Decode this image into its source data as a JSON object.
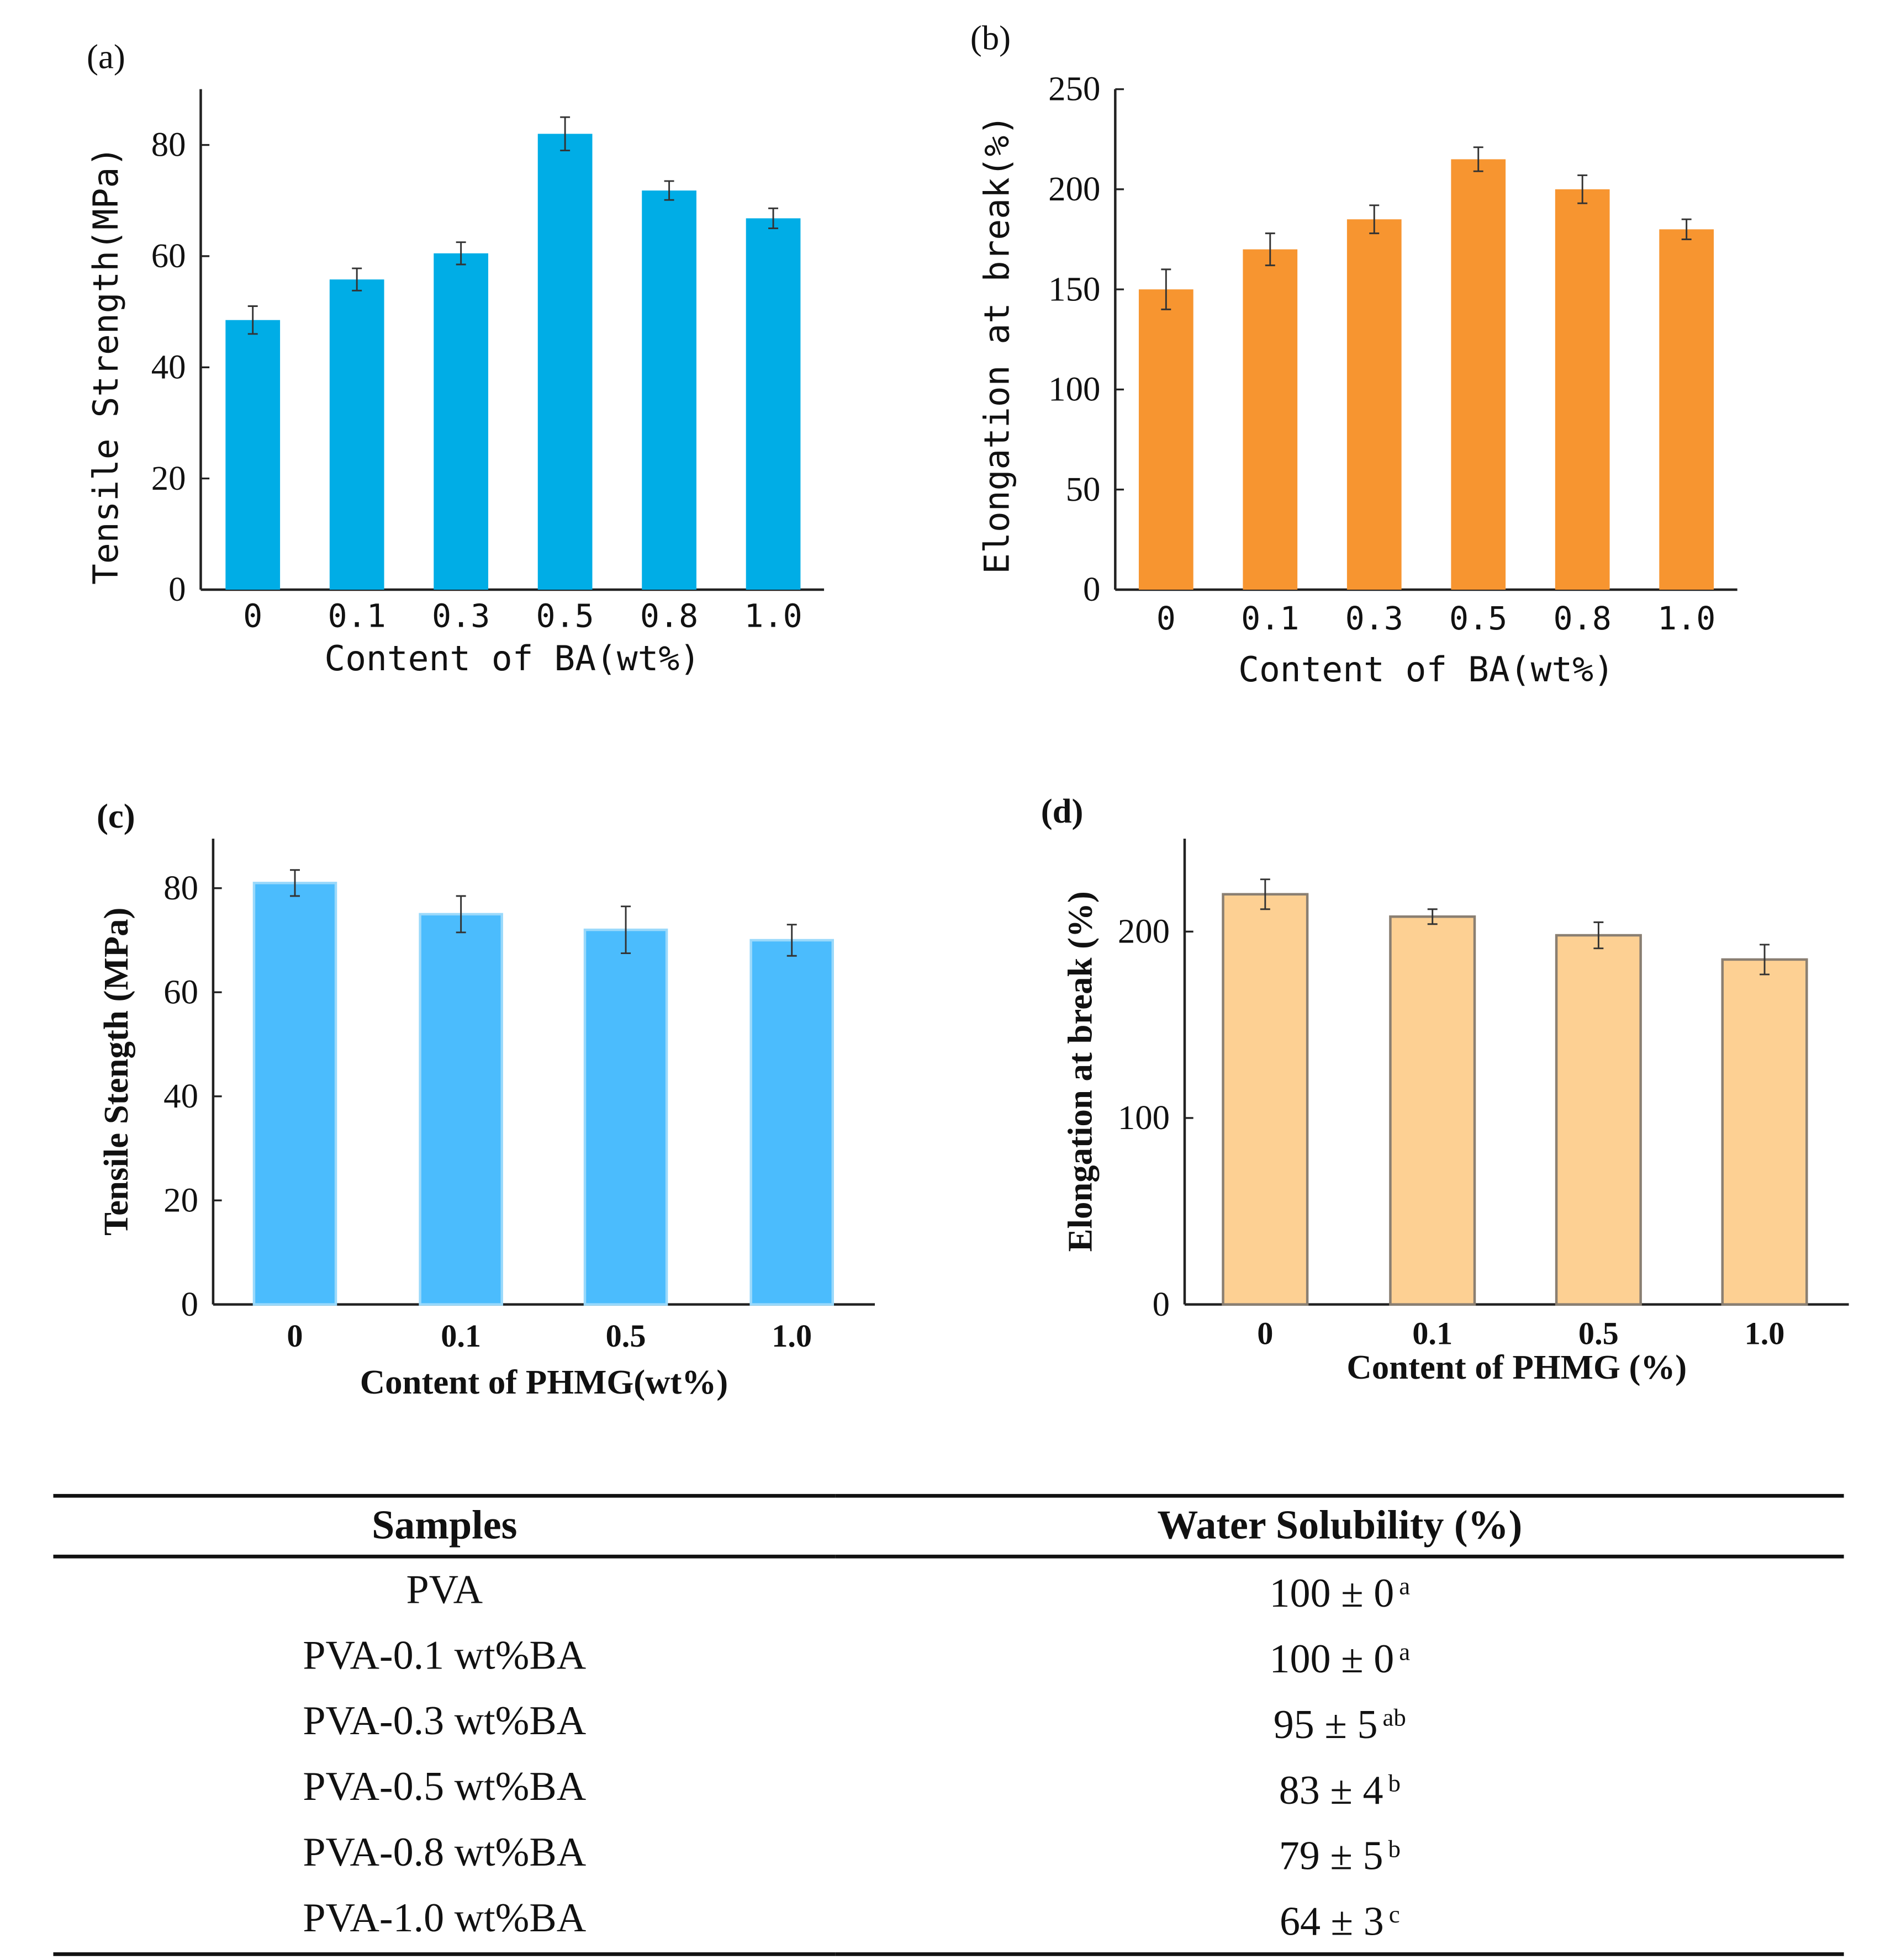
{
  "chart_data": [
    {
      "panel": "(a)",
      "type": "bar",
      "categories": [
        "0",
        "0.1",
        "0.3",
        "0.5",
        "0.8",
        "1.0"
      ],
      "values": [
        48.5,
        55.8,
        60.5,
        82,
        71.8,
        66.8
      ],
      "errors": [
        2.5,
        2,
        2,
        3,
        1.7,
        1.8
      ],
      "xlabel": "Content of BA(wt%)",
      "ylabel": "Tensile Strength(MPa)",
      "ylim": [
        0,
        90
      ],
      "yticks": [
        "0",
        "20",
        "40",
        "60",
        "80"
      ],
      "color": "#00ade6"
    },
    {
      "panel": "(b)",
      "type": "bar",
      "categories": [
        "0",
        "0.1",
        "0.3",
        "0.5",
        "0.8",
        "1.0"
      ],
      "values": [
        150,
        170,
        185,
        215,
        200,
        180
      ],
      "errors": [
        10,
        8,
        7,
        6,
        7,
        5
      ],
      "xlabel": "Content of BA(wt%)",
      "ylabel": "Elongation at break(%)",
      "ylim": [
        0,
        250
      ],
      "yticks": [
        "0",
        "50",
        "100",
        "150",
        "200",
        "250"
      ],
      "color": "#f79530"
    },
    {
      "panel": "(c)",
      "type": "bar",
      "categories": [
        "0",
        "0.1",
        "0.5",
        "1.0"
      ],
      "values": [
        81,
        75,
        72,
        70
      ],
      "errors": [
        2.5,
        3.5,
        4.5,
        3
      ],
      "xlabel": "Content of PHMG(wt%)",
      "ylabel": "Tensile Stength (MPa)",
      "ylim": [
        0,
        90
      ],
      "yticks": [
        "0",
        "20",
        "40",
        "60",
        "80"
      ],
      "color": "#4bbcfd"
    },
    {
      "panel": "(d)",
      "type": "bar",
      "categories": [
        "0",
        "0.1",
        "0.5",
        "1.0"
      ],
      "values": [
        220,
        208,
        198,
        185
      ],
      "errors": [
        8,
        4,
        7,
        8
      ],
      "xlabel": "Content of PHMG (%)",
      "ylabel": "Elongation at break (%)",
      "ylim": [
        0,
        250
      ],
      "yticks": [
        "0",
        "100",
        "200"
      ],
      "color": "#fdd093"
    },
    {
      "type": "table",
      "headers": [
        "Samples",
        "Water Solubility (%)"
      ],
      "rows": [
        [
          "PVA",
          "100 ± 0",
          "a"
        ],
        [
          "PVA-0.1 wt%BA",
          "100 ± 0",
          "a"
        ],
        [
          "PVA-0.3 wt%BA",
          "95 ± 5",
          "ab"
        ],
        [
          "PVA-0.5 wt%BA",
          "83 ± 4",
          "b"
        ],
        [
          "PVA-0.8 wt%BA",
          "79 ± 5",
          "b"
        ],
        [
          "PVA-1.0 wt%BA",
          "64 ± 3",
          "c"
        ]
      ]
    }
  ]
}
